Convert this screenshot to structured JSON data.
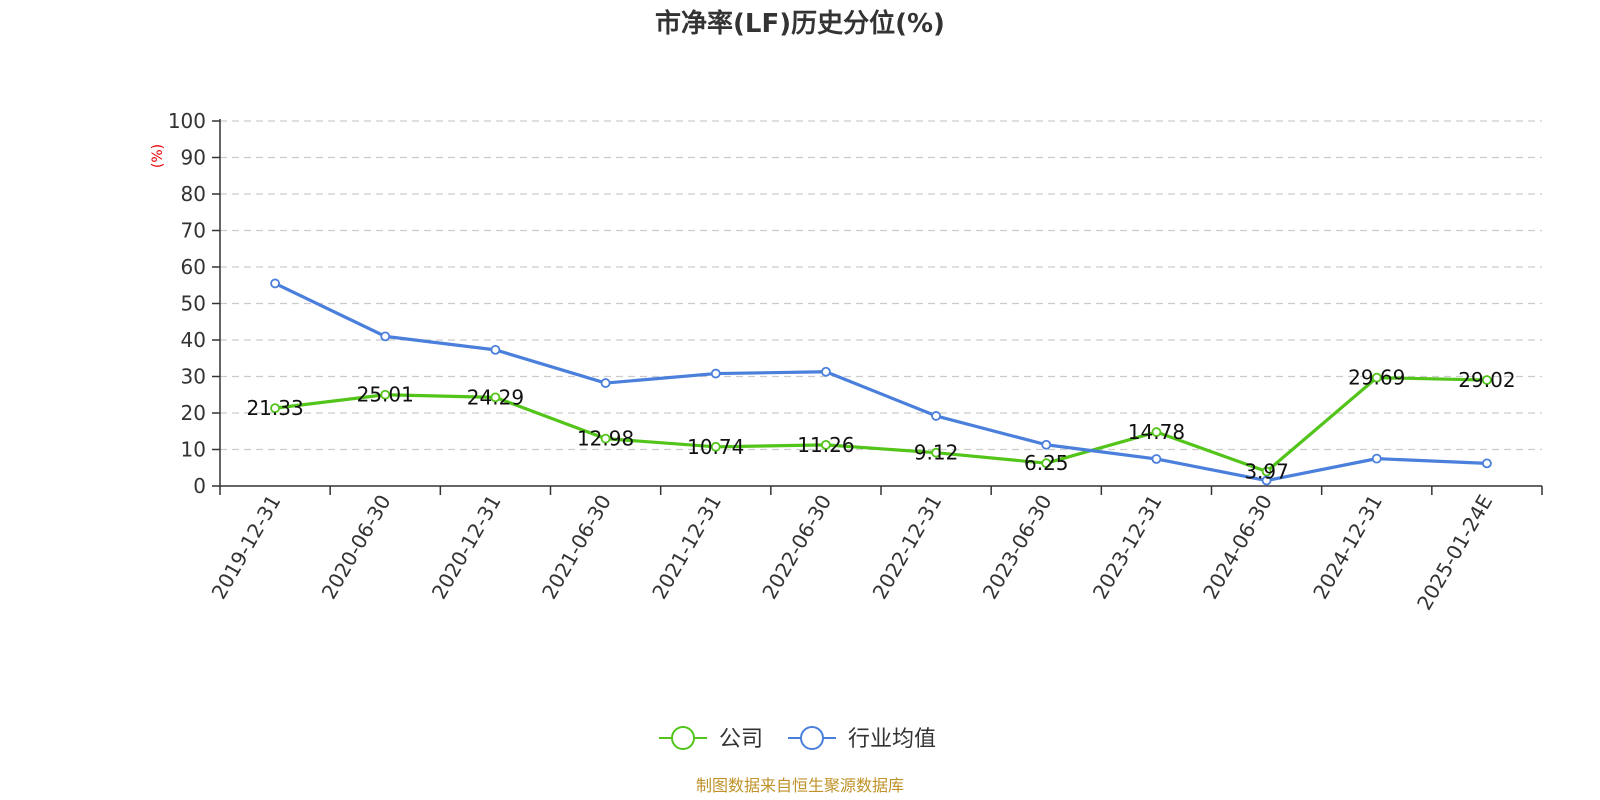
{
  "chart_data": {
    "type": "line",
    "title": "市净率(LF)历史分位(%)",
    "ylabel": "(%)",
    "xlabel": "",
    "ylim": [
      0,
      100
    ],
    "yticks": [
      0,
      10,
      20,
      30,
      40,
      50,
      60,
      70,
      80,
      90,
      100
    ],
    "grid": true,
    "categories": [
      "2019-12-31",
      "2020-06-30",
      "2020-12-31",
      "2021-06-30",
      "2021-12-31",
      "2022-06-30",
      "2022-12-31",
      "2023-06-30",
      "2023-12-31",
      "2024-06-30",
      "2024-12-31",
      "2025-01-24E"
    ],
    "series": [
      {
        "name": "公司",
        "color": "#52c41a",
        "values": [
          21.33,
          25.01,
          24.29,
          12.98,
          10.74,
          11.26,
          9.12,
          6.25,
          14.78,
          3.97,
          29.69,
          29.02
        ],
        "labels": [
          "21.33",
          "25.01",
          "24.29",
          "12.98",
          "10.74",
          "11.26",
          "9.12",
          "6.25",
          "14.78",
          "3.97",
          "29.69",
          "29.02"
        ],
        "show_labels": true
      },
      {
        "name": "行业均值",
        "color": "#4a7fdc",
        "values": [
          55.5,
          41,
          37.3,
          28.2,
          30.8,
          31.3,
          19.2,
          11.3,
          7.4,
          1.5,
          7.5,
          6.2
        ],
        "show_labels": false
      }
    ],
    "legend_position": "bottom-center",
    "source": "制图数据来自恒生聚源数据库"
  }
}
